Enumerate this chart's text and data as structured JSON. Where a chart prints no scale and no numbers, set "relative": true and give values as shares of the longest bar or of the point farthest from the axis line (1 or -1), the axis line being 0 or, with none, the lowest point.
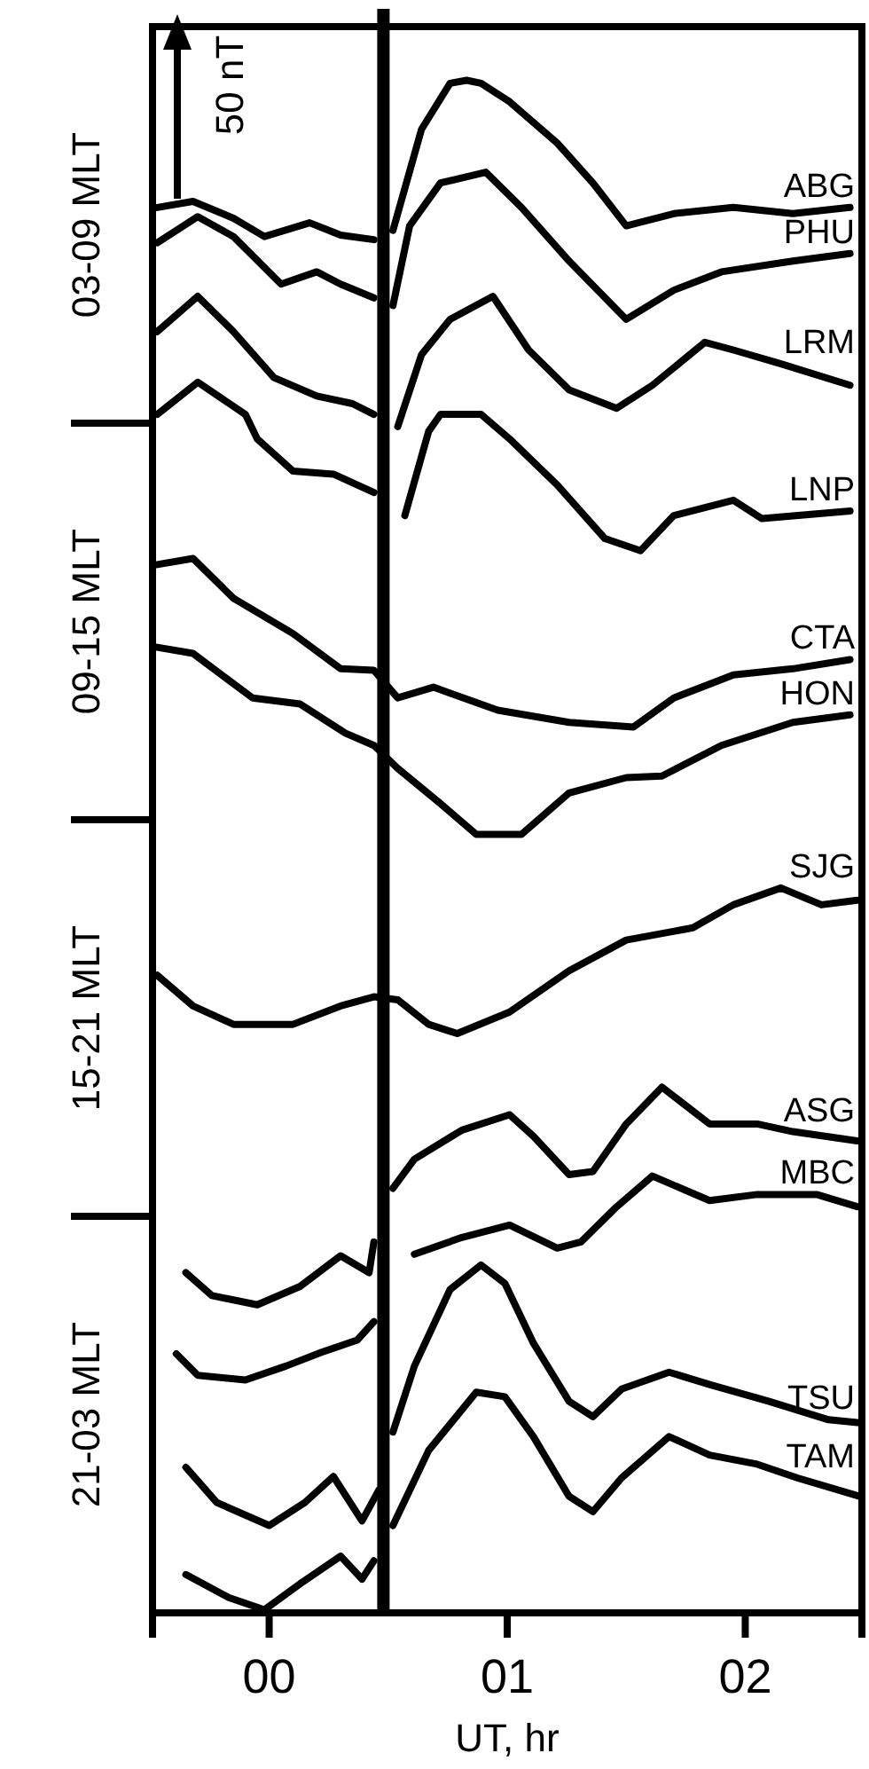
{
  "chart_data": {
    "type": "line",
    "relative": true,
    "xlabel": "UT,  hr",
    "xlim": [
      -0.49,
      2.49
    ],
    "xticks": [
      {
        "value": 0,
        "label": "00"
      },
      {
        "value": 1,
        "label": "01"
      },
      {
        "value": 2,
        "label": "02"
      }
    ],
    "annotations": [
      "50 nT",
      "03-09 MLT",
      "09-15 MLT",
      "15-21 MLT",
      "21-03 MLT"
    ],
    "ref_lines": [
      {
        "axis": "x",
        "value": 0.48,
        "label": null
      }
    ],
    "series": [
      {
        "name": "ABG",
        "color": "#000000",
        "x": [
          -0.47,
          -0.32,
          -0.15,
          -0.02,
          0.17,
          0.3,
          0.44,
          0.48,
          0.52,
          0.64,
          0.76,
          0.83,
          0.89,
          1.01,
          1.21,
          1.36,
          1.5,
          1.7,
          1.95,
          2.2,
          2.44
        ],
        "values": [
          0.917,
          0.921,
          0.91,
          0.898,
          0.907,
          0.899,
          0.896,
          null,
          0.902,
          0.968,
          0.998,
          1.0,
          0.998,
          0.986,
          0.959,
          0.933,
          0.905,
          0.913,
          0.917,
          0.913,
          0.917
        ]
      },
      {
        "name": "PHU",
        "color": "#000000",
        "x": [
          -0.47,
          -0.3,
          -0.15,
          0.05,
          0.2,
          0.3,
          0.44,
          0.48,
          0.52,
          0.59,
          0.72,
          0.91,
          1.06,
          1.26,
          1.5,
          1.7,
          1.9,
          2.2,
          2.44
        ],
        "values": [
          0.894,
          0.911,
          0.898,
          0.867,
          0.875,
          0.867,
          0.858,
          null,
          0.853,
          0.905,
          0.933,
          0.94,
          0.917,
          0.882,
          0.844,
          0.863,
          0.875,
          0.882,
          0.887
        ]
      },
      {
        "name": "LRM",
        "color": "#000000",
        "x": [
          -0.47,
          -0.3,
          -0.15,
          0.02,
          0.2,
          0.35,
          0.44,
          0.48,
          0.54,
          0.64,
          0.76,
          0.94,
          1.09,
          1.26,
          1.46,
          1.61,
          1.83,
          1.95,
          2.15,
          2.44
        ],
        "values": [
          0.836,
          0.859,
          0.836,
          0.806,
          0.794,
          0.789,
          0.782,
          null,
          0.774,
          0.821,
          0.844,
          0.859,
          0.824,
          0.798,
          0.786,
          0.801,
          0.829,
          0.824,
          0.815,
          0.801
        ]
      },
      {
        "name": "LNP",
        "color": "#000000",
        "x": [
          -0.47,
          -0.3,
          -0.1,
          -0.05,
          0.1,
          0.27,
          0.44,
          0.48,
          0.57,
          0.67,
          0.72,
          0.89,
          1.01,
          1.21,
          1.41,
          1.56,
          1.7,
          1.95,
          2.07,
          2.44
        ],
        "values": [
          0.782,
          0.803,
          0.782,
          0.766,
          0.745,
          0.743,
          0.731,
          null,
          0.716,
          0.771,
          0.782,
          0.782,
          0.766,
          0.736,
          0.701,
          0.693,
          0.716,
          0.726,
          0.714,
          0.719
        ]
      },
      {
        "name": "CTA",
        "color": "#000000",
        "x": [
          -0.47,
          -0.32,
          -0.15,
          0.1,
          0.3,
          0.44,
          0.54,
          0.69,
          0.96,
          1.26,
          1.53,
          1.7,
          1.95,
          2.2,
          2.44
        ],
        "values": [
          0.684,
          0.688,
          0.662,
          0.639,
          0.616,
          0.615,
          0.597,
          0.604,
          0.589,
          0.581,
          0.578,
          0.597,
          0.612,
          0.616,
          0.622
        ]
      },
      {
        "name": "HON",
        "color": "#000000",
        "x": [
          -0.47,
          -0.32,
          -0.07,
          0.13,
          0.32,
          0.44,
          0.54,
          0.72,
          0.87,
          1.06,
          1.26,
          1.5,
          1.65,
          1.9,
          2.2,
          2.44
        ],
        "values": [
          0.63,
          0.626,
          0.597,
          0.593,
          0.574,
          0.566,
          0.551,
          0.528,
          0.508,
          0.508,
          0.535,
          0.545,
          0.546,
          0.566,
          0.581,
          0.586
        ]
      },
      {
        "name": "SJG",
        "color": "#000000",
        "x": [
          -0.47,
          -0.32,
          -0.15,
          0.1,
          0.3,
          0.44,
          0.54,
          0.67,
          0.79,
          1.01,
          1.26,
          1.5,
          1.78,
          1.95,
          2.15,
          2.32,
          2.47
        ],
        "values": [
          0.416,
          0.396,
          0.384,
          0.384,
          0.396,
          0.402,
          0.4,
          0.384,
          0.378,
          0.392,
          0.419,
          0.439,
          0.447,
          0.462,
          0.473,
          0.462,
          0.465
        ]
      },
      {
        "name": "ASG",
        "color": "#000000",
        "x": [
          -0.35,
          -0.24,
          -0.05,
          0.13,
          0.3,
          0.42,
          0.44,
          0.48,
          0.52,
          0.61,
          0.81,
          1.01,
          1.11,
          1.26,
          1.36,
          1.5,
          1.65,
          1.85,
          2.05,
          2.2,
          2.47
        ],
        "values": [
          0.222,
          0.207,
          0.201,
          0.213,
          0.233,
          0.222,
          0.242,
          null,
          0.277,
          0.296,
          0.315,
          0.325,
          0.311,
          0.286,
          0.288,
          0.319,
          0.343,
          0.319,
          0.319,
          0.314,
          0.308
        ]
      },
      {
        "name": "MBC",
        "color": "#000000",
        "x": [
          -0.39,
          -0.3,
          -0.1,
          0.07,
          0.22,
          0.37,
          0.44,
          0.48,
          0.61,
          0.81,
          1.01,
          1.21,
          1.31,
          1.46,
          1.61,
          1.85,
          2.05,
          2.3,
          2.47
        ],
        "values": [
          0.169,
          0.155,
          0.152,
          0.161,
          0.17,
          0.178,
          0.19,
          null,
          0.234,
          0.245,
          0.253,
          0.238,
          0.242,
          0.265,
          0.285,
          0.269,
          0.273,
          0.273,
          0.265
        ]
      },
      {
        "name": "TSU",
        "color": "#000000",
        "x": [
          -0.35,
          -0.22,
          0,
          0.15,
          0.27,
          0.39,
          0.46,
          0.48,
          0.52,
          0.61,
          0.76,
          0.89,
          0.99,
          1.11,
          1.26,
          1.36,
          1.48,
          1.68,
          1.85,
          2.1,
          2.35,
          2.48
        ],
        "values": [
          0.095,
          0.072,
          0.057,
          0.072,
          0.089,
          0.06,
          0.08,
          null,
          0.118,
          0.161,
          0.211,
          0.227,
          0.215,
          0.176,
          0.138,
          0.128,
          0.146,
          0.157,
          0.149,
          0.138,
          0.126,
          0.124
        ]
      },
      {
        "name": "TAM",
        "color": "#000000",
        "x": [
          -0.35,
          -0.17,
          -0.02,
          0.13,
          0.3,
          0.39,
          0.44,
          0.48,
          0.52,
          0.67,
          0.87,
          0.99,
          1.11,
          1.26,
          1.36,
          1.48,
          1.68,
          1.85,
          2.05,
          2.22,
          2.48
        ],
        "values": [
          0.025,
          0.01,
          0.002,
          0.019,
          0.037,
          0.022,
          0.034,
          null,
          0.057,
          0.106,
          0.144,
          0.141,
          0.115,
          0.076,
          0.066,
          0.088,
          0.115,
          0.103,
          0.097,
          0.088,
          0.076
        ]
      }
    ]
  }
}
